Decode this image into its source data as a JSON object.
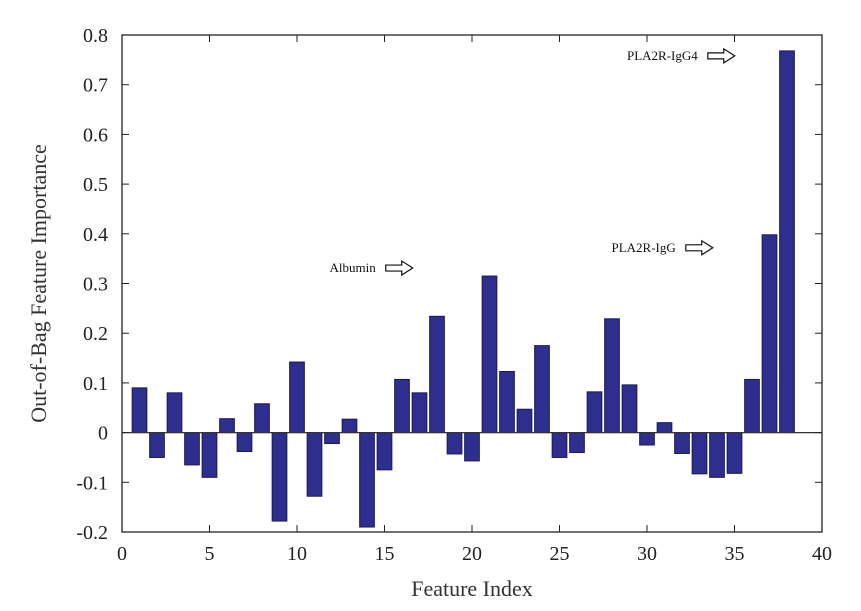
{
  "chart_data": {
    "type": "bar",
    "xlabel": "Feature Index",
    "ylabel": "Out-of-Bag Feature Importance",
    "xlim": [
      0,
      40
    ],
    "ylim": [
      -0.2,
      0.8
    ],
    "xticks": [
      0,
      5,
      10,
      15,
      20,
      25,
      30,
      35,
      40
    ],
    "xtick_labels": [
      "0",
      "5",
      "10",
      "15",
      "20",
      "25",
      "30",
      "35",
      "40"
    ],
    "yticks": [
      -0.2,
      -0.1,
      0,
      0.1,
      0.2,
      0.3,
      0.4,
      0.5,
      0.6,
      0.7,
      0.8
    ],
    "ytick_labels": [
      "-0.2",
      "-0.1",
      "0",
      "0.1",
      "0.2",
      "0.3",
      "0.4",
      "0.5",
      "0.6",
      "0.7",
      "0.8"
    ],
    "x": [
      1,
      2,
      3,
      4,
      5,
      6,
      7,
      8,
      9,
      10,
      11,
      12,
      13,
      14,
      15,
      16,
      17,
      18,
      19,
      20,
      21,
      22,
      23,
      24,
      25,
      26,
      27,
      28,
      29,
      30,
      31,
      32,
      33,
      34,
      35,
      36,
      37,
      38
    ],
    "values": [
      0.09,
      -0.05,
      0.08,
      -0.065,
      -0.09,
      0.028,
      -0.038,
      0.058,
      -0.178,
      0.142,
      -0.128,
      -0.022,
      0.027,
      -0.19,
      -0.075,
      0.107,
      0.08,
      0.234,
      -0.043,
      -0.057,
      0.315,
      0.123,
      0.047,
      0.175,
      -0.05,
      -0.04,
      0.082,
      0.229,
      0.096,
      -0.025,
      0.02,
      -0.042,
      -0.083,
      -0.09,
      -0.082,
      0.107,
      0.398,
      0.768
    ],
    "bar_color": "#2e2e8e",
    "grid": false,
    "annotations": [
      {
        "text": "Albumin",
        "x": 21,
        "y": 0.315
      },
      {
        "text": "PLA2R-IgG",
        "x": 37,
        "y": 0.398
      },
      {
        "text": "PLA2R-IgG4",
        "x": 38,
        "y": 0.768
      }
    ]
  }
}
